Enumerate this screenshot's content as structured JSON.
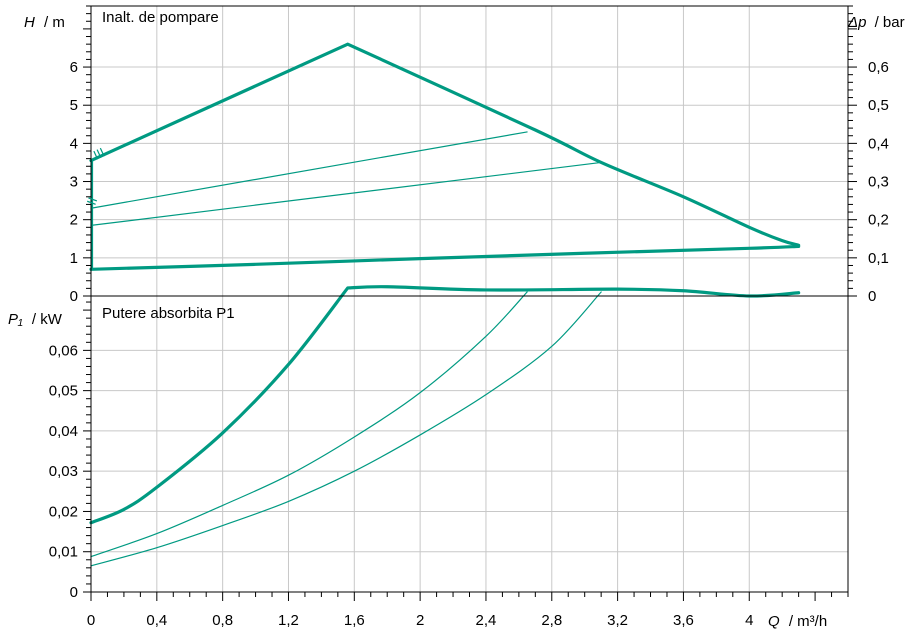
{
  "chart_data": {
    "type": "line",
    "colors": {
      "curve": "#009a82",
      "grid": "#c8c8c8",
      "axis": "#000000"
    },
    "x_axis": {
      "label_var": "Q",
      "label_unit": "/ m³/h",
      "range": [
        0,
        4.6
      ],
      "ticks": [
        0,
        0.4,
        0.8,
        1.2,
        1.6,
        2,
        2.4,
        2.8,
        3.2,
        3.6,
        4
      ],
      "tick_labels": [
        "0",
        "0,4",
        "0,8",
        "1,2",
        "1,6",
        "2",
        "2,4",
        "2,8",
        "3,2",
        "3,6",
        "4"
      ]
    },
    "head_panel": {
      "title": "Inalt. de pompare",
      "y_label_var": "H",
      "y_label_unit": "/ m",
      "y_range": [
        0,
        7.6
      ],
      "y_ticks": [
        0,
        1,
        2,
        3,
        4,
        5,
        6
      ],
      "y_tick_labels": [
        "0",
        "1",
        "2",
        "3",
        "4",
        "5",
        "6"
      ],
      "y2_label_var": "Δp",
      "y2_label_unit": "/ bar",
      "y2_range": [
        0,
        0.76
      ],
      "y2_ticks": [
        0,
        0.1,
        0.2,
        0.3,
        0.4,
        0.5,
        0.6
      ],
      "y2_tick_labels": [
        "0",
        "0,1",
        "0,2",
        "0,3",
        "0,4",
        "0,5",
        "0,6"
      ],
      "speed_labels": [
        "III",
        "II"
      ],
      "series": [
        {
          "id": "max",
          "style": "thick",
          "points": [
            [
              0,
              3.55
            ],
            [
              1.56,
              6.6
            ],
            [
              2.7,
              4.35
            ],
            [
              3.1,
              3.5
            ],
            [
              3.6,
              2.6
            ],
            [
              4.0,
              1.8
            ],
            [
              4.2,
              1.45
            ],
            [
              4.3,
              1.33
            ]
          ]
        },
        {
          "id": "min",
          "style": "thick",
          "points": [
            [
              0,
              0.7
            ],
            [
              1.0,
              0.83
            ],
            [
              2.0,
              0.98
            ],
            [
              3.0,
              1.12
            ],
            [
              4.0,
              1.25
            ],
            [
              4.3,
              1.3
            ]
          ]
        },
        {
          "id": "speed-iii",
          "style": "thin",
          "points": [
            [
              0,
              2.3
            ],
            [
              2.65,
              4.3
            ]
          ]
        },
        {
          "id": "speed-ii",
          "style": "thin",
          "points": [
            [
              0,
              1.85
            ],
            [
              3.1,
              3.5
            ]
          ]
        }
      ]
    },
    "power_panel": {
      "title": "Putere absorbita P1",
      "y_label_var": "P₁",
      "y_label_unit": "/ kW",
      "y_range": [
        0,
        0.0735
      ],
      "y_ticks": [
        0,
        0.01,
        0.02,
        0.03,
        0.04,
        0.05,
        0.06
      ],
      "y_tick_labels": [
        "0",
        "0,01",
        "0,02",
        "0,03",
        "0,04",
        "0,05",
        "0,06"
      ],
      "series": [
        {
          "id": "max",
          "style": "thick",
          "points": [
            [
              0,
              0.0172
            ],
            [
              0.2,
              0.0205
            ],
            [
              0.4,
              0.026
            ],
            [
              0.8,
              0.0395
            ],
            [
              1.2,
              0.0565
            ],
            [
              1.56,
              0.0755
            ],
            [
              1.8,
              0.0758
            ],
            [
              2.4,
              0.075
            ],
            [
              3.2,
              0.0752
            ],
            [
              3.6,
              0.0748
            ],
            [
              4.0,
              0.0735
            ],
            [
              4.3,
              0.0743
            ]
          ]
        },
        {
          "id": "speed-iii",
          "style": "thin",
          "points": [
            [
              0,
              0.0088
            ],
            [
              0.4,
              0.0145
            ],
            [
              0.8,
              0.0215
            ],
            [
              1.2,
              0.029
            ],
            [
              1.6,
              0.0385
            ],
            [
              2.0,
              0.0495
            ],
            [
              2.4,
              0.0635
            ],
            [
              2.65,
              0.0745
            ]
          ]
        },
        {
          "id": "speed-ii",
          "style": "thin",
          "points": [
            [
              0,
              0.0065
            ],
            [
              0.4,
              0.011
            ],
            [
              0.8,
              0.0165
            ],
            [
              1.2,
              0.0225
            ],
            [
              1.6,
              0.03
            ],
            [
              2.0,
              0.039
            ],
            [
              2.4,
              0.049
            ],
            [
              2.8,
              0.061
            ],
            [
              3.1,
              0.0745
            ]
          ]
        }
      ]
    }
  }
}
